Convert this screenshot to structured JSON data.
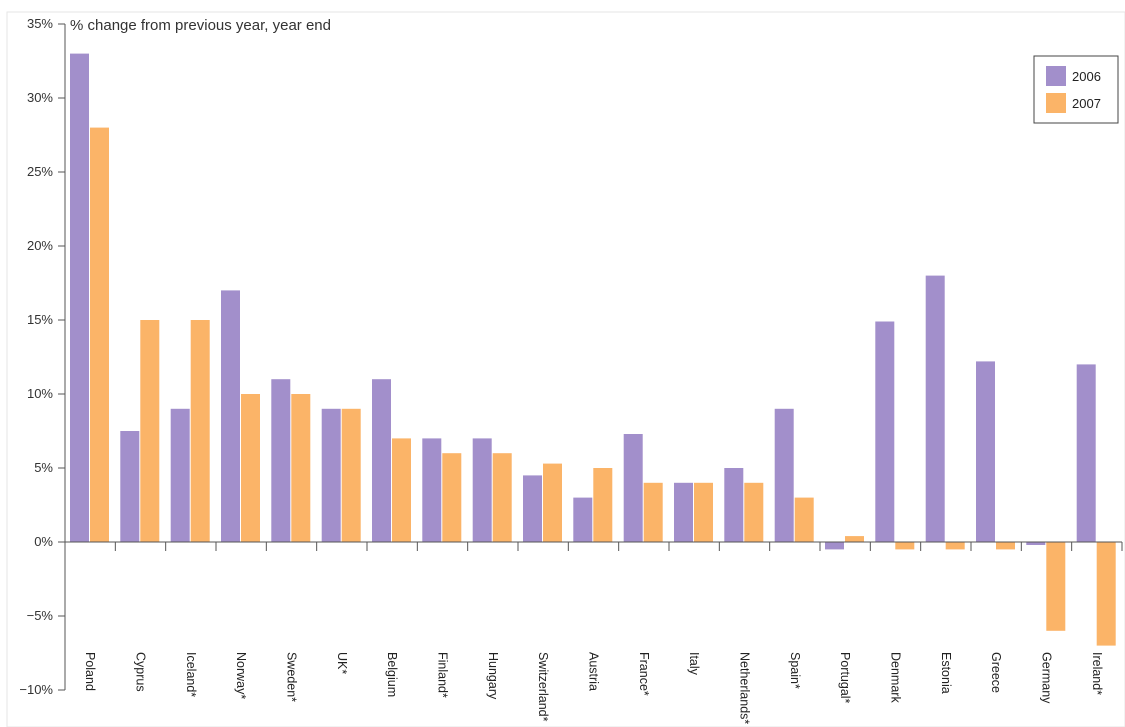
{
  "chart_data": {
    "type": "bar",
    "title": "% change from previous year, year end",
    "xlabel": "",
    "ylabel": "",
    "ylim": [
      -10,
      35
    ],
    "yticks": [
      -10,
      -5,
      0,
      5,
      10,
      15,
      20,
      25,
      30,
      35
    ],
    "ytick_labels": [
      "−10%",
      "−5%",
      "0%",
      "5%",
      "10%",
      "15%",
      "20%",
      "25%",
      "30%",
      "35%"
    ],
    "grid": false,
    "legend_position": "top-right",
    "categories": [
      "Poland",
      "Cyprus",
      "Iceland*",
      "Norway*",
      "Sweden*",
      "UK*",
      "Belgium",
      "Finland*",
      "Hungary",
      "Switzerland*",
      "Austria",
      "France*",
      "Italy",
      "Netherlands*",
      "Spain*",
      "Portugal*",
      "Denmark",
      "Estonia",
      "Greece",
      "Germany",
      "Ireland*"
    ],
    "series": [
      {
        "name": "2006",
        "color": "#a28fcb",
        "values": [
          33,
          7.5,
          9,
          17,
          11,
          9,
          11,
          7,
          7,
          4.5,
          3,
          7.3,
          4,
          5,
          9,
          -0.5,
          14.9,
          18,
          12.2,
          -0.2,
          12
        ]
      },
      {
        "name": "2007",
        "color": "#fbb468",
        "values": [
          28,
          15,
          15,
          10,
          10,
          9,
          7,
          6,
          6,
          5.3,
          5,
          4,
          4,
          4,
          3,
          0.4,
          -0.5,
          -0.5,
          -0.5,
          -6,
          -7
        ]
      }
    ]
  }
}
